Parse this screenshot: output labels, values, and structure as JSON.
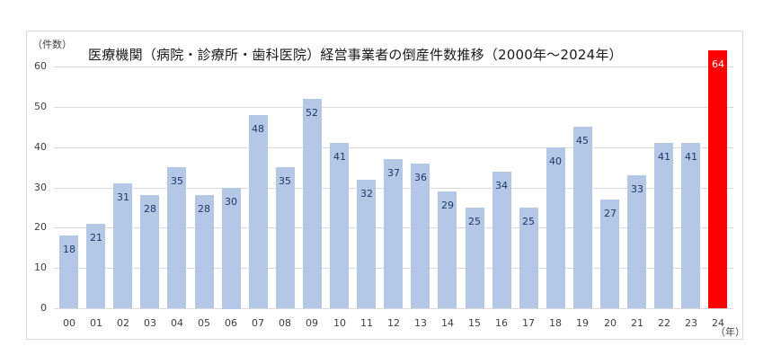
{
  "chart_data": {
    "type": "bar",
    "title": "医療機関（病院・診療所・歯科医院）経営事業者の倒産件数推移（2000年～2024年）",
    "xlabel": "（年）",
    "ylabel": "（件数）",
    "ylim": [
      0,
      60
    ],
    "yticks": [
      0,
      10,
      20,
      30,
      40,
      50,
      60
    ],
    "grid": true,
    "legend": "none",
    "categories": [
      "00",
      "01",
      "02",
      "03",
      "04",
      "05",
      "06",
      "07",
      "08",
      "09",
      "10",
      "11",
      "12",
      "13",
      "14",
      "15",
      "16",
      "17",
      "18",
      "19",
      "20",
      "21",
      "22",
      "23",
      "24"
    ],
    "values": [
      18,
      21,
      31,
      28,
      35,
      28,
      30,
      48,
      35,
      52,
      41,
      32,
      37,
      36,
      29,
      25,
      34,
      25,
      40,
      45,
      27,
      33,
      41,
      41,
      64
    ],
    "colors": {
      "default_bar": "#b4c7e7",
      "highlight_bar": "#ff0000",
      "highlight_index": 24,
      "label_default": "#1f3864",
      "label_highlight": "#ffffff"
    }
  }
}
